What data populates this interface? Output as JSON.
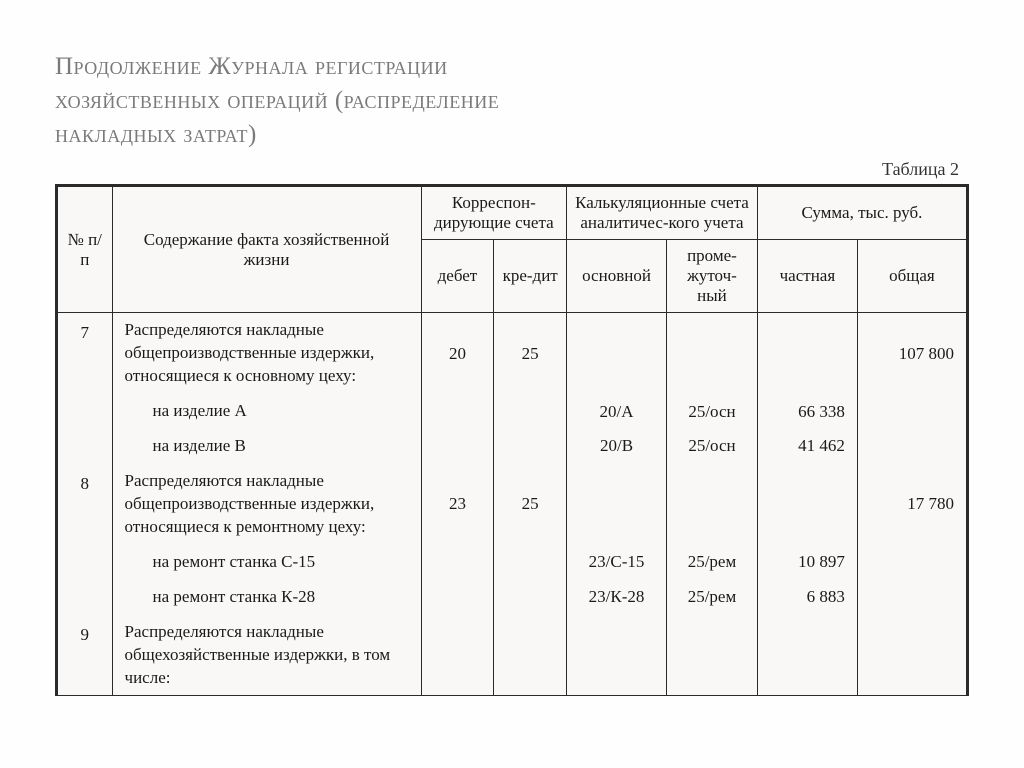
{
  "title_line1": "Продолжение Журнала регистрации",
  "title_line2": "хозяйственных операций (распределение",
  "title_line3": "накладных затрат)",
  "table_label": "Таблица 2",
  "headers": {
    "np": "№ п/п",
    "content": "Содержание факта хозяйственной жизни",
    "korr": "Корреспон-дирующие счета",
    "kalk": "Калькуляционные счета аналитичес-кого учета",
    "summa": "Сумма, тыс. руб.",
    "debet": "дебет",
    "kredit": "кре-дит",
    "osnov": "основной",
    "promez": "проме-жуточ-ный",
    "chast": "частная",
    "obsh": "общая"
  },
  "rows": [
    {
      "n": "7",
      "desc": "Распределяются накладные общепроизводственные издержки, относящиеся к основному цеху:",
      "deb": "20",
      "kre": "25",
      "osn": "",
      "prom": "",
      "chas": "",
      "obs": "107 800"
    },
    {
      "n": "",
      "desc": "на изделие А",
      "deb": "",
      "kre": "",
      "osn": "20/А",
      "prom": "25/осн",
      "chas": "66 338",
      "obs": ""
    },
    {
      "n": "",
      "desc": "на изделие В",
      "deb": "",
      "kre": "",
      "osn": "20/В",
      "prom": "25/осн",
      "chas": "41 462",
      "obs": ""
    },
    {
      "n": "8",
      "desc": "Распределяются накладные общепроизводственные издержки, относящиеся к ремонтному цеху:",
      "deb": "23",
      "kre": "25",
      "osn": "",
      "prom": "",
      "chas": "",
      "obs": "17 780"
    },
    {
      "n": "",
      "desc": "на ремонт станка С-15",
      "deb": "",
      "kre": "",
      "osn": "23/С-15",
      "prom": "25/рем",
      "chas": "10 897",
      "obs": ""
    },
    {
      "n": "",
      "desc": "на ремонт станка К-28",
      "deb": "",
      "kre": "",
      "osn": "23/К-28",
      "prom": "25/рем",
      "chas": "6 883",
      "obs": ""
    },
    {
      "n": "9",
      "desc": "Распределяются накладные общехозяйственные издержки, в том числе:",
      "deb": "",
      "kre": "",
      "osn": "",
      "prom": "",
      "chas": "",
      "obs": ""
    }
  ]
}
